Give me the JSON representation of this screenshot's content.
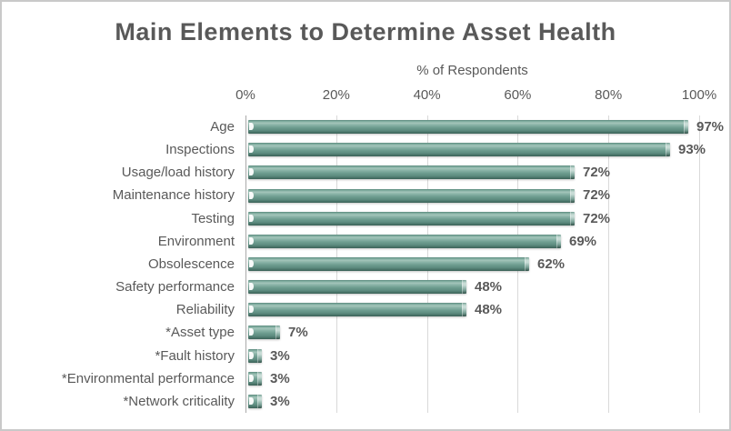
{
  "chart_data": {
    "type": "bar",
    "orientation": "horizontal",
    "title": "Main Elements to Determine Asset Health",
    "xlabel": "% of Respondents",
    "ylabel": "",
    "categories": [
      "Age",
      "Inspections",
      "Usage/load history",
      "Maintenance history",
      "Testing",
      "Environment",
      "Obsolescence",
      "Safety performance",
      "Reliability",
      "*Asset type",
      "*Fault history",
      "*Environmental performance",
      "*Network criticality"
    ],
    "values": [
      97,
      93,
      72,
      72,
      72,
      69,
      62,
      48,
      48,
      7,
      3,
      3,
      3
    ],
    "data_labels": [
      "97%",
      "93%",
      "72%",
      "72%",
      "72%",
      "69%",
      "62%",
      "48%",
      "48%",
      "7%",
      "3%",
      "3%",
      "3%"
    ],
    "x_ticks": [
      "0%",
      "20%",
      "40%",
      "60%",
      "80%",
      "100%"
    ],
    "xlim": [
      0,
      100
    ],
    "grid": true,
    "legend": false,
    "value_axis_position": "top"
  },
  "colors": {
    "background": "#ffffff",
    "border": "#c9c9c9",
    "title": "#595959",
    "text": "#595959",
    "grid": "#d9d9d9",
    "axis": "#a9a9a9",
    "bar_top": "#578579",
    "bar_highlight": "#a4c5ba",
    "bar_mid": "#6d9c8f",
    "bar_dark": "#41685d"
  }
}
